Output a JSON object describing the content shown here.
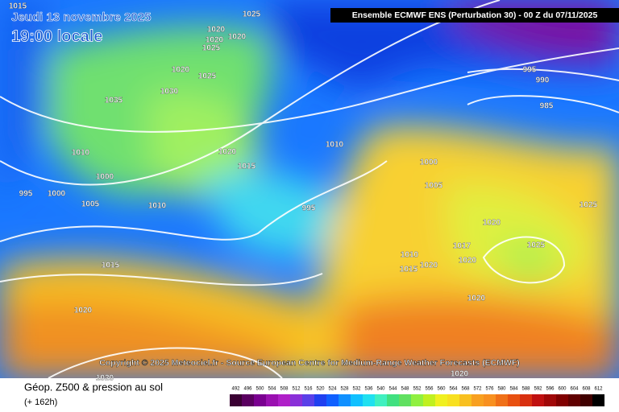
{
  "header": {
    "date": "Jeudi 13 novembre 2025",
    "time": "19:00 locale",
    "model": "Ensemble ECMWF ENS  (Perturbation 30)  - 00 Z du 07/11/2025"
  },
  "copyright": "Copyright © 2025 Meteociel.fr - Source European Centre for Medium-Range Weather Forecasts (ECMWF)",
  "legend": {
    "title": "Géop. Z500 & pression au sol",
    "lead": "(+ 162h)",
    "values": [
      492,
      496,
      500,
      504,
      508,
      512,
      516,
      520,
      524,
      528,
      532,
      536,
      540,
      544,
      548,
      552,
      556,
      560,
      564,
      568,
      572,
      576,
      580,
      584,
      588,
      592,
      596,
      600,
      604,
      608,
      612
    ],
    "colors": [
      "#3a0033",
      "#5a0060",
      "#7a0090",
      "#9a10b0",
      "#b020c8",
      "#8a30d8",
      "#5a40e8",
      "#2040f0",
      "#1060ff",
      "#1090ff",
      "#10c0ff",
      "#20e0f0",
      "#40f0c0",
      "#40e080",
      "#60e060",
      "#90f040",
      "#c0f020",
      "#f0f020",
      "#f8e020",
      "#f8c020",
      "#f8a020",
      "#f89020",
      "#f07018",
      "#e85010",
      "#d83010",
      "#c01010",
      "#a00808",
      "#800000",
      "#600000",
      "#400000",
      "#000000"
    ]
  },
  "isobars": [
    1015,
    1025,
    1020,
    1020,
    1020,
    1025,
    1020,
    1025,
    1035,
    1030,
    1010,
    1000,
    995,
    1000,
    1005,
    1010,
    1020,
    1015,
    1010,
    995,
    1000,
    1005,
    1020,
    1025,
    1025,
    1017,
    1010,
    1020,
    1015,
    1020,
    1020,
    1015,
    1020,
    1020,
    1020,
    995,
    990,
    985
  ]
}
